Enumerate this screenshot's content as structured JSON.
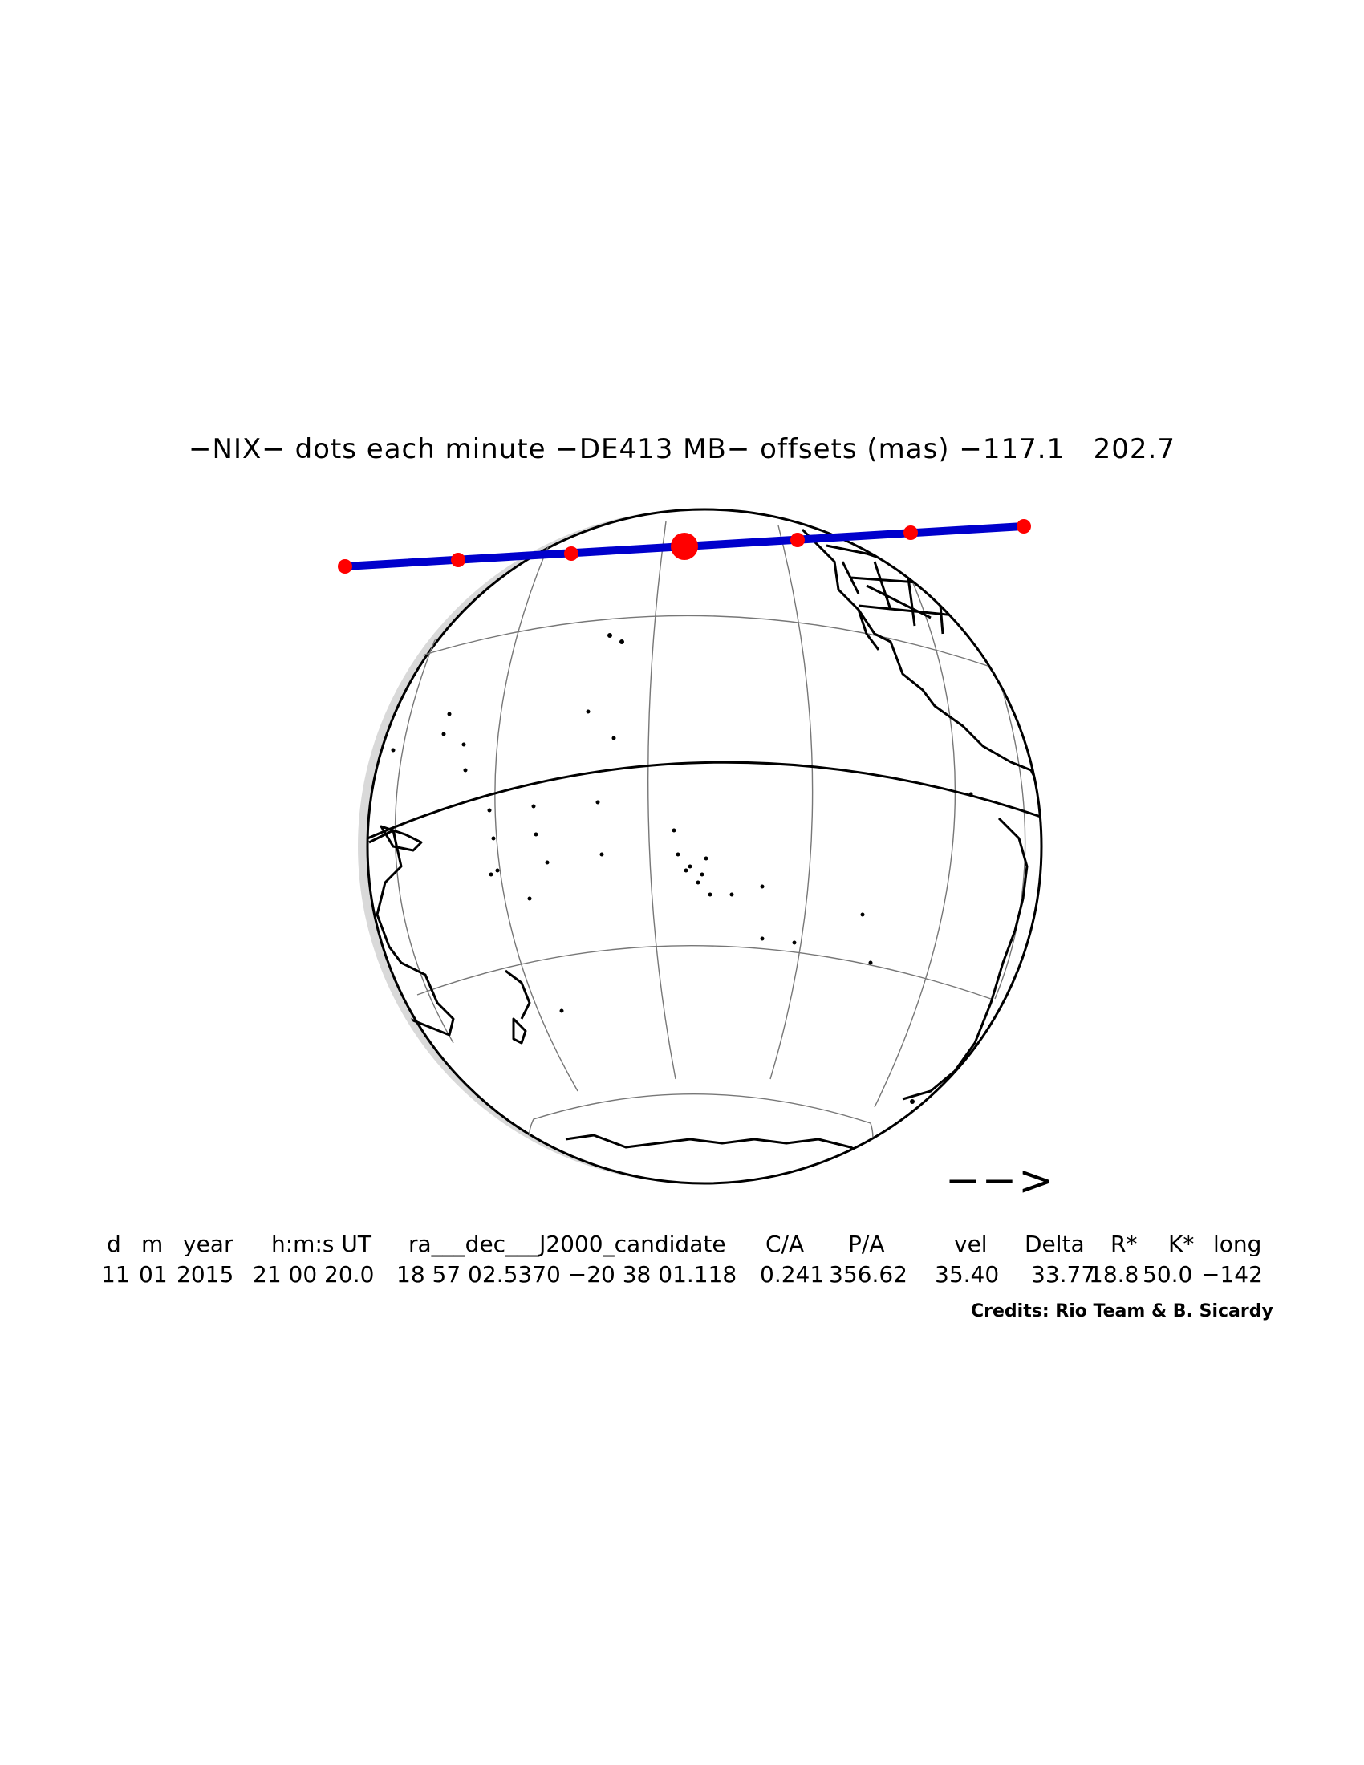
{
  "title": "−NIX− dots each minute −DE413 MB− offsets (mas) −117.1   202.7",
  "direction_arrow": "−−>",
  "table": {
    "headers": [
      "d",
      "m",
      "year",
      "h:m:s UT",
      "ra___dec___J2000_candidate",
      "C/A",
      "P/A",
      "vel",
      "Delta",
      "R*",
      "K*",
      "long"
    ],
    "values": [
      "11",
      "01",
      "2015",
      "21 00 20.0",
      "18 57 02.5370 −20 38 01.118",
      "0.241",
      "356.62",
      "35.40",
      "33.77",
      "18.8",
      "50.0",
      "−142"
    ]
  },
  "credits": "Credits: Rio Team & B. Sicardy",
  "map": {
    "projection": "orthographic",
    "track_color": "#0000cc",
    "dot_color": "#ff0000",
    "land_outline_color": "#000000",
    "graticule_color": "#777777",
    "minute_dots": 7,
    "closest_approach_dot": 4
  }
}
